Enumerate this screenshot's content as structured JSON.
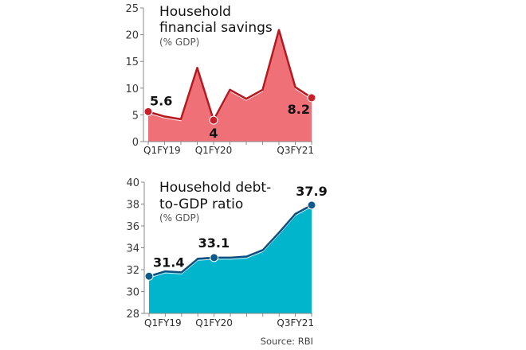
{
  "chart_data": [
    {
      "type": "area",
      "title": "Household financial savings",
      "title_lines": [
        "Household",
        "financial savings"
      ],
      "subtitle": "(% GDP)",
      "xlabel": "",
      "ylabel": "% GDP",
      "x": [
        "Q1FY19",
        "Q2FY19",
        "Q3FY19",
        "Q4FY19",
        "Q1FY20",
        "Q2FY20",
        "Q3FY20",
        "Q4FY20",
        "Q1FY21",
        "Q2FY21",
        "Q3FY21"
      ],
      "x_tick_labels": {
        "0": "Q1FY19",
        "4": "Q1FY20",
        "10": "Q3FY21"
      },
      "values": [
        5.6,
        4.7,
        4.2,
        13.8,
        4.0,
        9.7,
        8.0,
        9.7,
        20.9,
        10.2,
        8.2
      ],
      "ylim": [
        0,
        25
      ],
      "yticks": [
        0,
        5,
        10,
        15,
        20,
        25
      ],
      "annotations": [
        {
          "index": 0,
          "text": "5.6"
        },
        {
          "index": 4,
          "text": "4"
        },
        {
          "index": 10,
          "text": "8.2"
        }
      ],
      "colors": {
        "fill": "#f07078",
        "line": "#b5191f",
        "marker": "#c8202a"
      },
      "grid": false,
      "legend": "none"
    },
    {
      "type": "area",
      "title": "Household debt-to-GDP ratio",
      "title_lines": [
        "Household debt-",
        "to-GDP ratio"
      ],
      "subtitle": "(% GDP)",
      "xlabel": "",
      "ylabel": "% GDP",
      "x": [
        "Q1FY19",
        "Q2FY19",
        "Q3FY19",
        "Q4FY19",
        "Q1FY20",
        "Q2FY20",
        "Q3FY20",
        "Q4FY20",
        "Q1FY21",
        "Q2FY21",
        "Q3FY21"
      ],
      "x_tick_labels": {
        "0": "Q1FY19",
        "4": "Q1FY20",
        "10": "Q3FY21"
      },
      "values": [
        31.4,
        31.85,
        31.75,
        33.0,
        33.1,
        33.1,
        33.2,
        33.8,
        35.4,
        37.1,
        37.9
      ],
      "ylim": [
        28,
        40
      ],
      "yticks": [
        28,
        30,
        32,
        34,
        36,
        38,
        40
      ],
      "annotations": [
        {
          "index": 0,
          "text": "31.4"
        },
        {
          "index": 4,
          "text": "33.1"
        },
        {
          "index": 10,
          "text": "37.9"
        }
      ],
      "colors": {
        "fill": "#00b5cc",
        "line": "#0f4f7f",
        "marker": "#0f5a8c"
      },
      "grid": false,
      "legend": "none"
    }
  ],
  "source": "Source: RBI"
}
